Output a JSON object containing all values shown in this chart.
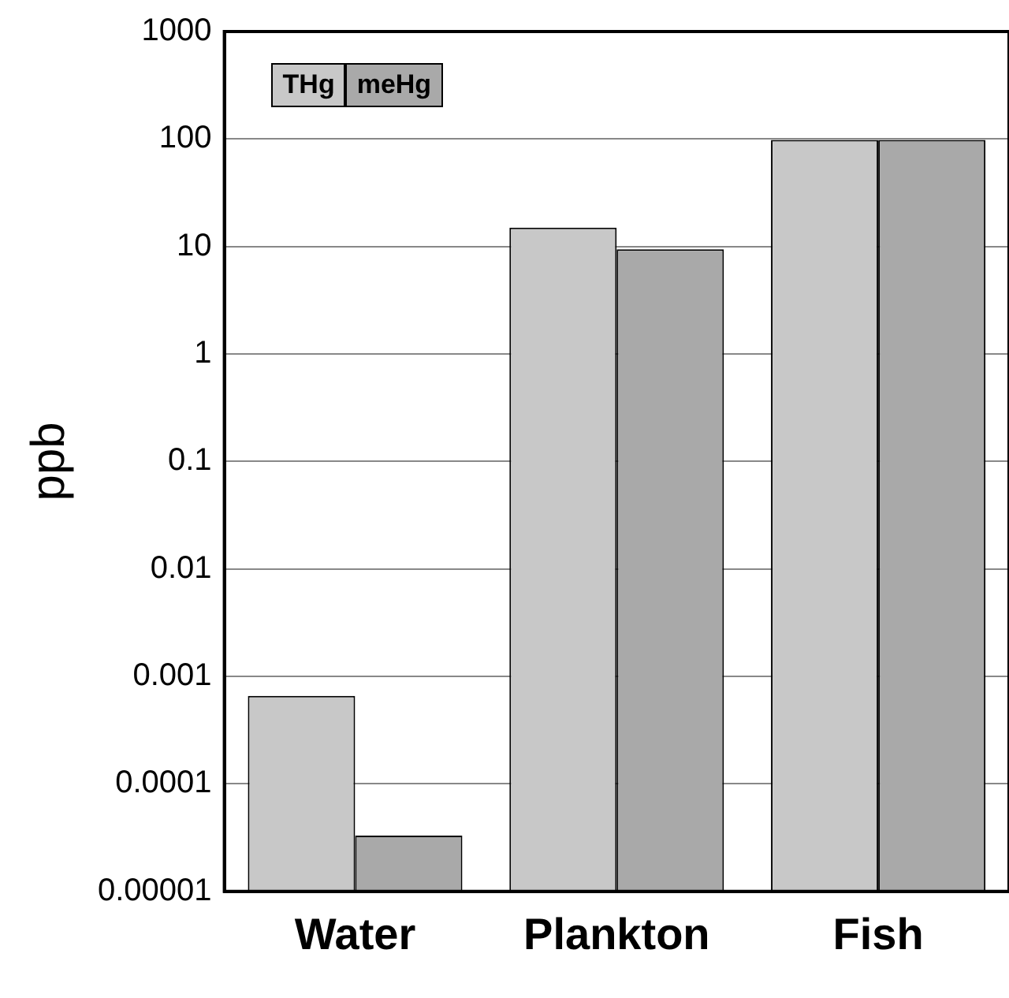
{
  "chart_data": {
    "type": "bar",
    "ylabel": "ppb",
    "categories": [
      "Water",
      "Plankton",
      "Fish"
    ],
    "series": [
      {
        "name": "THg",
        "color": "#c8c8c8",
        "values": [
          0.00066,
          15,
          98
        ]
      },
      {
        "name": "meHg",
        "color": "#a9a9a9",
        "values": [
          3.3e-05,
          9.4,
          98
        ]
      }
    ],
    "log": "y",
    "ylim": [
      1e-05,
      1000
    ],
    "yticks": [
      {
        "value": 1e-05,
        "label": "0.00001"
      },
      0.0001,
      0.001,
      0.01,
      0.1,
      1,
      10,
      100,
      1000
    ],
    "grid": "y",
    "legend": "top left"
  }
}
